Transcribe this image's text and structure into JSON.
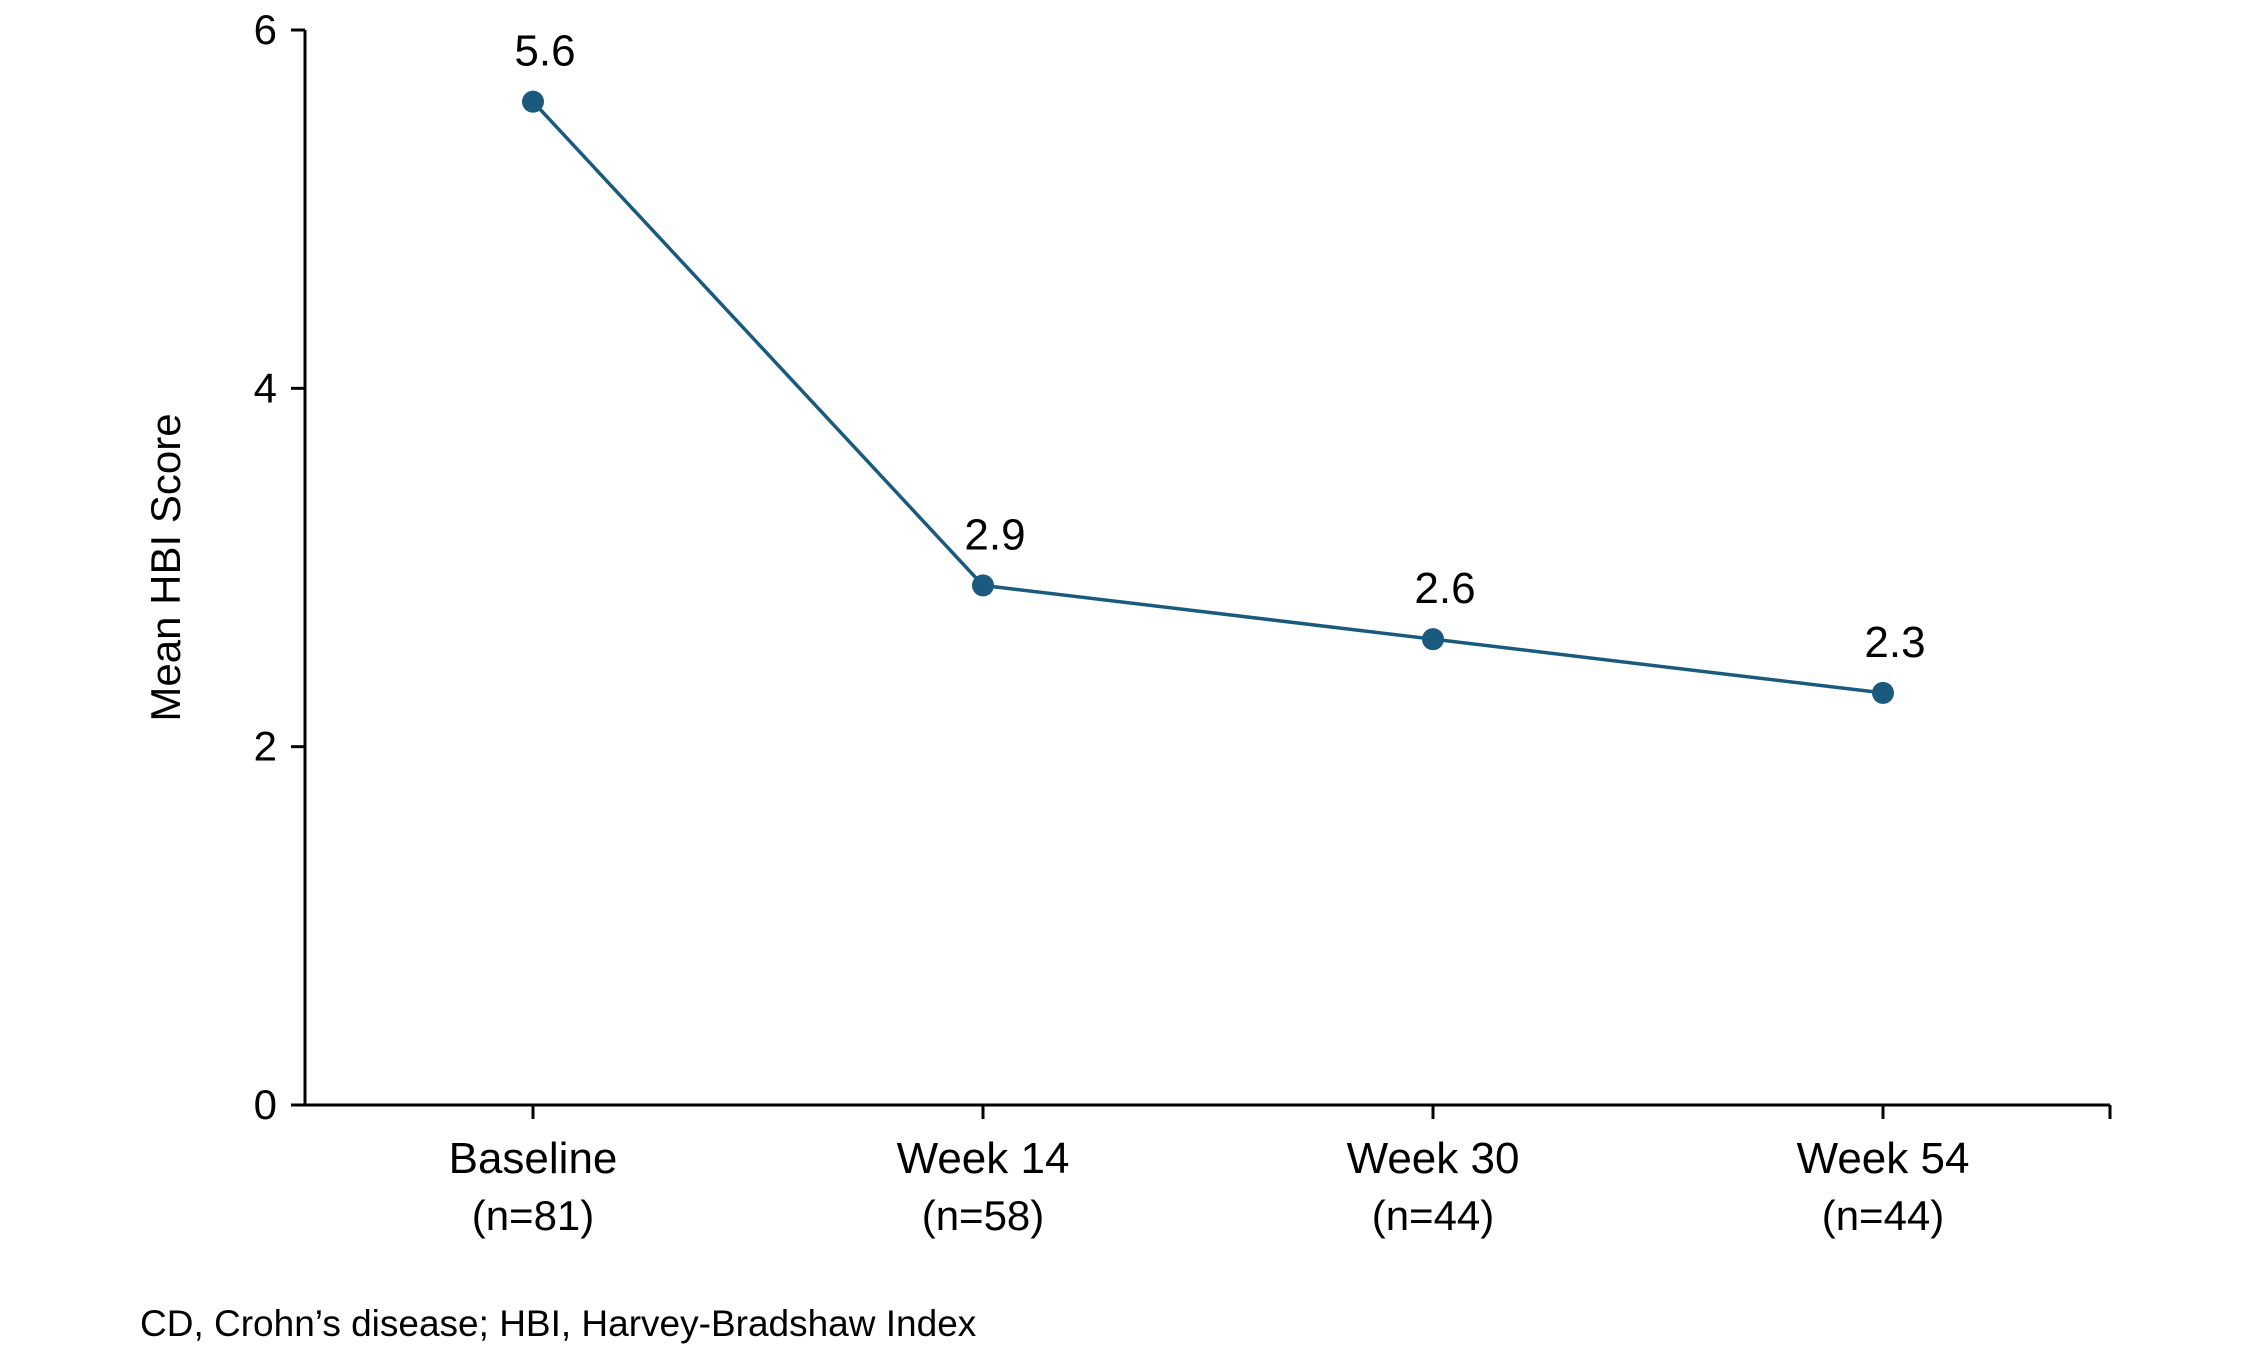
{
  "chart_data": {
    "type": "line",
    "categories": [
      "Baseline",
      "Week 14",
      "Week 30",
      "Week 54"
    ],
    "category_sublabels": [
      "(n=81)",
      "(n=58)",
      "(n=44)",
      "(n=44)"
    ],
    "series": [
      {
        "values": [
          5.6,
          2.9,
          2.6,
          2.3
        ],
        "data_labels": [
          "5.6",
          "2.9",
          "2.6",
          "2.3"
        ],
        "color": "#1a5a7e"
      }
    ],
    "ylabel": "Mean HBI Score",
    "xlabel": "",
    "ylim": [
      0,
      6
    ],
    "yticks": [
      0,
      2,
      4,
      6
    ],
    "ytick_labels": [
      "0",
      "2",
      "4",
      "6"
    ],
    "grid": false,
    "legend": "none"
  },
  "footnote": "CD, Crohn’s disease; HBI, Harvey-Bradshaw Index"
}
